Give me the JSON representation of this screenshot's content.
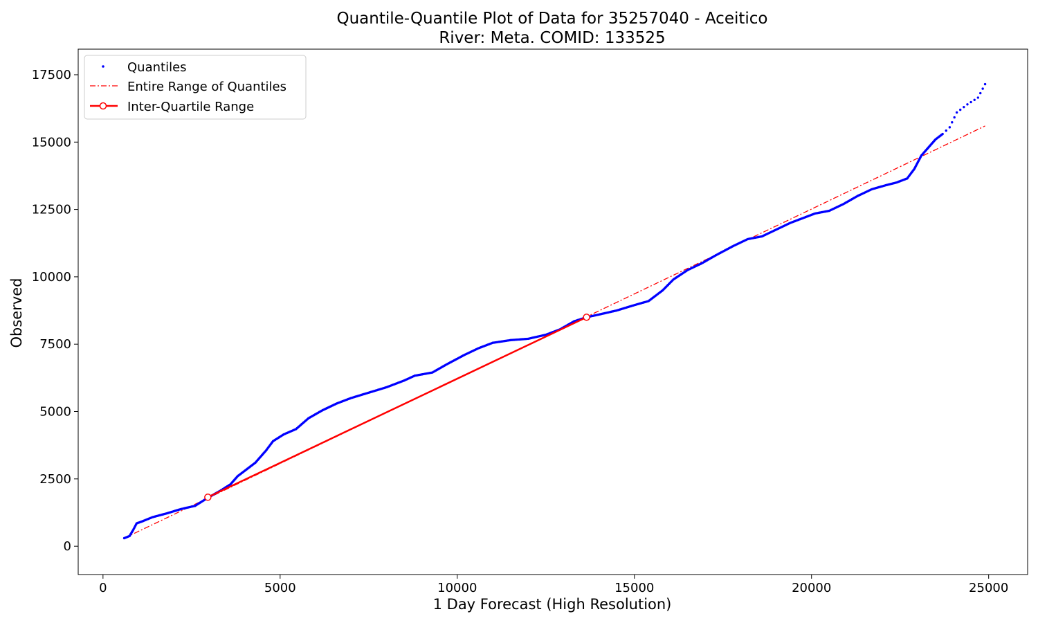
{
  "chart_data": {
    "type": "scatter",
    "title": "Quantile-Quantile Plot of Data for 35257040 - Aceitico",
    "subtitle": "River: Meta. COMID: 133525",
    "xlabel": "1 Day Forecast (High Resolution)",
    "ylabel": "Observed",
    "xlim": [
      -700,
      26100
    ],
    "ylim": [
      -1050,
      18450
    ],
    "xticks": [
      0,
      5000,
      10000,
      15000,
      20000,
      25000
    ],
    "yticks": [
      0,
      2500,
      5000,
      7500,
      10000,
      12500,
      15000,
      17500
    ],
    "grid": false,
    "legend_position": "top-left",
    "colors": {
      "quantiles": "#0000ff",
      "entire_range": "#ff0000",
      "iqr": "#ff0000"
    },
    "series": [
      {
        "name": "Quantiles",
        "style": "points",
        "anchors": [
          [
            600,
            300
          ],
          [
            750,
            380
          ],
          [
            850,
            600
          ],
          [
            950,
            850
          ],
          [
            1100,
            920
          ],
          [
            1400,
            1080
          ],
          [
            1800,
            1220
          ],
          [
            2200,
            1380
          ],
          [
            2600,
            1500
          ],
          [
            2960,
            1800
          ],
          [
            3300,
            2050
          ],
          [
            3600,
            2300
          ],
          [
            3800,
            2600
          ],
          [
            4050,
            2850
          ],
          [
            4300,
            3100
          ],
          [
            4600,
            3550
          ],
          [
            4800,
            3900
          ],
          [
            5100,
            4150
          ],
          [
            5450,
            4350
          ],
          [
            5800,
            4750
          ],
          [
            6200,
            5050
          ],
          [
            6600,
            5300
          ],
          [
            7000,
            5500
          ],
          [
            7500,
            5700
          ],
          [
            8000,
            5900
          ],
          [
            8500,
            6150
          ],
          [
            8800,
            6330
          ],
          [
            9300,
            6450
          ],
          [
            9700,
            6750
          ],
          [
            10200,
            7100
          ],
          [
            10600,
            7350
          ],
          [
            11000,
            7550
          ],
          [
            11500,
            7650
          ],
          [
            12000,
            7700
          ],
          [
            12500,
            7850
          ],
          [
            12900,
            8050
          ],
          [
            13300,
            8350
          ],
          [
            13650,
            8500
          ],
          [
            14000,
            8600
          ],
          [
            14500,
            8750
          ],
          [
            15000,
            8950
          ],
          [
            15400,
            9100
          ],
          [
            15800,
            9500
          ],
          [
            16100,
            9900
          ],
          [
            16500,
            10250
          ],
          [
            16900,
            10500
          ],
          [
            17300,
            10800
          ],
          [
            17800,
            11150
          ],
          [
            18200,
            11400
          ],
          [
            18600,
            11500
          ],
          [
            19000,
            11750
          ],
          [
            19400,
            12000
          ],
          [
            19700,
            12150
          ],
          [
            20100,
            12350
          ],
          [
            20500,
            12450
          ],
          [
            20900,
            12700
          ],
          [
            21300,
            13000
          ],
          [
            21700,
            13250
          ],
          [
            22100,
            13400
          ],
          [
            22400,
            13500
          ],
          [
            22700,
            13650
          ],
          [
            22900,
            14000
          ],
          [
            23100,
            14500
          ],
          [
            23300,
            14800
          ],
          [
            23500,
            15100
          ],
          [
            23700,
            15300
          ],
          [
            23900,
            15550
          ],
          [
            24100,
            16100
          ],
          [
            24400,
            16400
          ],
          [
            24700,
            16650
          ],
          [
            24900,
            17150
          ]
        ]
      },
      {
        "name": "Entire Range of Quantiles",
        "style": "dash-dot",
        "x": [
          600,
          24900
        ],
        "y": [
          300,
          15600
        ]
      },
      {
        "name": "Inter-Quartile Range",
        "style": "line-with-markers",
        "x": [
          2960,
          13650
        ],
        "y": [
          1820,
          8500
        ]
      }
    ]
  }
}
